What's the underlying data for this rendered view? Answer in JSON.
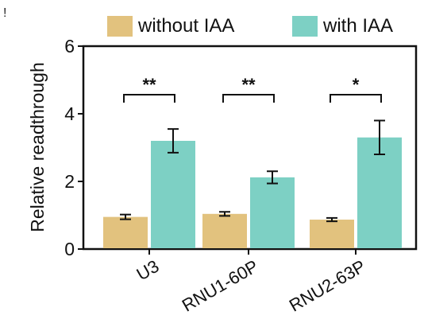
{
  "corner_mark": "!",
  "chart_data": {
    "type": "bar",
    "title": "",
    "xlabel": "",
    "ylabel": "Relative readthrough",
    "ylim": [
      0,
      6
    ],
    "yticks": [
      0,
      2,
      4,
      6
    ],
    "categories": [
      "U3",
      "RNU1-60P",
      "RNU2-63P"
    ],
    "series": [
      {
        "name": "without IAA",
        "color": "#E2C27E",
        "values": [
          0.95,
          1.04,
          0.87
        ],
        "errors": [
          0.07,
          0.06,
          0.05
        ]
      },
      {
        "name": "with IAA",
        "color": "#7DD0C4",
        "values": [
          3.2,
          2.12,
          3.3
        ],
        "errors": [
          0.35,
          0.18,
          0.5
        ]
      }
    ],
    "significance": [
      "**",
      "**",
      "*"
    ],
    "legend_position": "top",
    "grid": false
  }
}
